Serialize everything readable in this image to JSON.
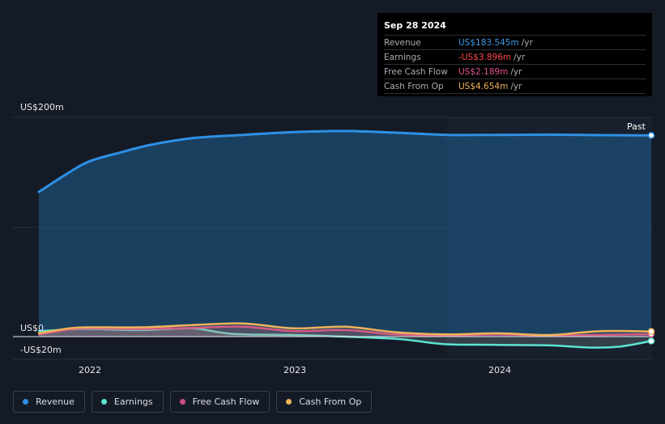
{
  "tooltip": {
    "date": "Sep 28 2024",
    "rows": [
      {
        "label": "Revenue",
        "value": "US$183.545m",
        "unit": "/yr",
        "color": "#3d9be9"
      },
      {
        "label": "Earnings",
        "value": "-US$3.896m",
        "unit": "/yr",
        "color": "#ff4b4b"
      },
      {
        "label": "Free Cash Flow",
        "value": "US$2.189m",
        "unit": "/yr",
        "color": "#e0538c"
      },
      {
        "label": "Cash From Op",
        "value": "US$4.654m",
        "unit": "/yr",
        "color": "#f0b35a"
      }
    ]
  },
  "past_label": "Past",
  "legend": [
    {
      "label": "Revenue",
      "color": "#2e90e5"
    },
    {
      "label": "Earnings",
      "color": "#5de3d3"
    },
    {
      "label": "Free Cash Flow",
      "color": "#d14f8b"
    },
    {
      "label": "Cash From Op",
      "color": "#f0b35a"
    }
  ],
  "chart_data": {
    "type": "area",
    "x_tick_labels": [
      "2022",
      "2023",
      "2024"
    ],
    "y_tick_labels": [
      "US$200m",
      "US$0",
      "-US$20m"
    ],
    "ylim": [
      -20,
      200
    ],
    "xlim": [
      2021.75,
      2024.75
    ],
    "past_region_start": 2023.75,
    "series": [
      {
        "name": "Revenue",
        "color": "#2e90e5",
        "x": [
          2021.75,
          2021.9,
          2022.0,
          2022.15,
          2022.3,
          2022.5,
          2022.75,
          2023.0,
          2023.25,
          2023.5,
          2023.75,
          2024.0,
          2024.25,
          2024.5,
          2024.75
        ],
        "y": [
          132,
          150,
          160,
          168,
          175,
          181,
          184,
          186.5,
          187.5,
          186,
          184,
          184,
          184.2,
          183.8,
          183.5
        ]
      },
      {
        "name": "Earnings",
        "color": "#5de3d3",
        "x": [
          2021.75,
          2021.9,
          2022.0,
          2022.25,
          2022.5,
          2022.7,
          2023.0,
          2023.25,
          2023.5,
          2023.6,
          2023.75,
          2024.0,
          2024.25,
          2024.45,
          2024.6,
          2024.75
        ],
        "y": [
          5,
          6.5,
          7,
          6,
          7.5,
          2.5,
          1.5,
          0,
          -2,
          -4,
          -7,
          -7.5,
          -8,
          -10,
          -9,
          -4
        ]
      },
      {
        "name": "Free Cash Flow",
        "color": "#d14f8b",
        "x": [
          2021.75,
          2021.9,
          2022.0,
          2022.25,
          2022.5,
          2022.75,
          2023.0,
          2023.25,
          2023.5,
          2023.75,
          2024.0,
          2024.25,
          2024.5,
          2024.75
        ],
        "y": [
          2,
          6.5,
          7.5,
          7,
          8,
          9,
          5,
          6,
          2,
          1,
          2,
          1,
          1.5,
          2.2
        ]
      },
      {
        "name": "Cash From Op",
        "color": "#f0b35a",
        "x": [
          2021.75,
          2021.9,
          2022.0,
          2022.25,
          2022.5,
          2022.75,
          2023.0,
          2023.25,
          2023.5,
          2023.75,
          2024.0,
          2024.25,
          2024.5,
          2024.75
        ],
        "y": [
          3,
          7.5,
          8.5,
          8.5,
          10.5,
          12,
          7.5,
          9,
          4,
          2,
          3,
          1.5,
          5,
          4.7
        ]
      }
    ]
  }
}
